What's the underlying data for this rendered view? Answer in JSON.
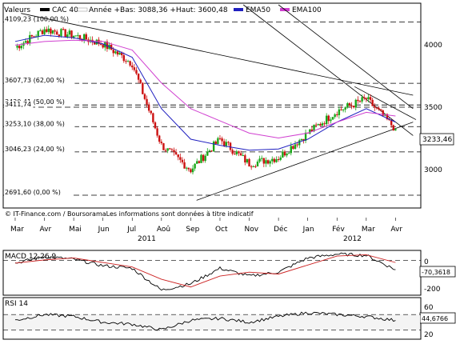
{
  "legend": {
    "header_label": "Valeurs",
    "series": [
      {
        "name": "CAC 40",
        "color": "#000000"
      },
      {
        "name": "Année +Bas: 3088,36 +Haut: 3600,48",
        "color": "#ffffff"
      },
      {
        "name": "EMA50",
        "color": "#2020c0"
      },
      {
        "name": "EMA100",
        "color": "#d040d0"
      }
    ]
  },
  "credit": "© IT-Finance.com / BoursoramaLes informations sont données à titre indicatif",
  "price_axis": {
    "ticks": [
      "4000",
      "3500",
      "3000"
    ],
    "last_value": "3233,46"
  },
  "fib_levels": [
    {
      "value": 4109.23,
      "label": "4109,23 (100,00 %)"
    },
    {
      "value": 3607.73,
      "label": "3607,73 (62,00 %)"
    },
    {
      "value": 3430.41,
      "label": "3430,41 (50,00 %)"
    },
    {
      "value": 3411.74,
      "label": "3411,74"
    },
    {
      "value": 3253.1,
      "label": "3253,10 (38,00 %)"
    },
    {
      "value": 3046.23,
      "label": "3046,23 (24,00 %)"
    },
    {
      "value": 2691.6,
      "label": "2691,60 (0,00 %)"
    }
  ],
  "months": [
    "Mar",
    "Avr",
    "Mai",
    "Jun",
    "Jul",
    "Aoû",
    "Sep",
    "Oct",
    "Nov",
    "Déc",
    "Jan",
    "Fév",
    "Mar",
    "Avr"
  ],
  "years": [
    "2011",
    "2012"
  ],
  "macd": {
    "label": "MACD 12,26,9",
    "ticks": [
      "0",
      "-200"
    ],
    "last_value": "-70,3618"
  },
  "rsi": {
    "label": "RSI 14",
    "ticks": [
      "60",
      "20"
    ],
    "last_value": "44,6766"
  },
  "chart_data": {
    "type": "line",
    "title": "CAC 40",
    "y_range": [
      2600,
      4250
    ],
    "x": [
      "Mar",
      "Avr",
      "Mai",
      "Jun",
      "Jul",
      "Aoû",
      "Sep",
      "Oct",
      "Nov",
      "Déc",
      "Jan",
      "Fév",
      "Mar",
      "Avr"
    ],
    "series": [
      {
        "name": "CAC 40",
        "values": [
          3900,
          4050,
          4000,
          3930,
          3770,
          3100,
          2900,
          3150,
          2950,
          3000,
          3200,
          3380,
          3480,
          3233.46
        ]
      },
      {
        "name": "EMA50",
        "values": [
          3950,
          4000,
          3980,
          3930,
          3820,
          3400,
          3150,
          3100,
          3060,
          3070,
          3150,
          3290,
          3400,
          3290
        ]
      },
      {
        "name": "EMA100",
        "values": [
          3920,
          3950,
          3960,
          3950,
          3880,
          3610,
          3400,
          3300,
          3200,
          3160,
          3200,
          3290,
          3370,
          3340
        ]
      }
    ],
    "indicators": [
      {
        "name": "MACD 12,26,9",
        "y_range": [
          -250,
          60
        ],
        "values": [
          -20,
          30,
          10,
          -40,
          -60,
          -230,
          -180,
          -60,
          -120,
          -90,
          20,
          50,
          40,
          -70.3618
        ]
      },
      {
        "name": "RSI 14",
        "y_range": [
          0,
          100
        ],
        "values": [
          45,
          60,
          55,
          40,
          35,
          20,
          45,
          50,
          40,
          55,
          65,
          60,
          55,
          44.6766
        ]
      }
    ]
  }
}
